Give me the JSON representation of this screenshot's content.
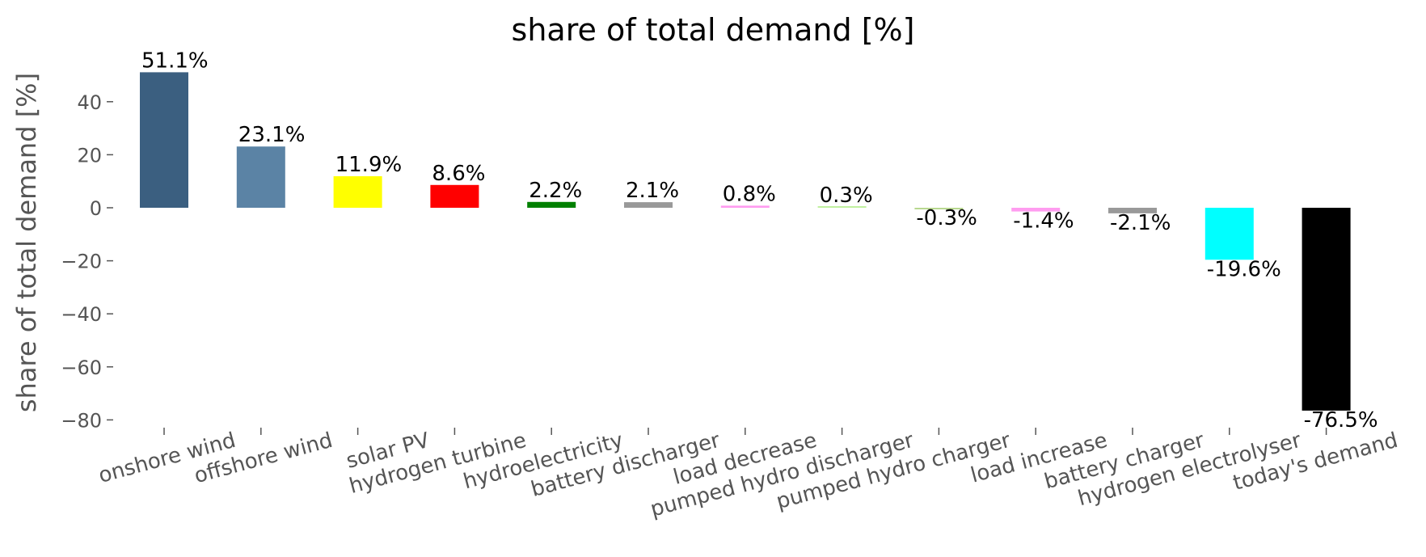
{
  "chart_data": {
    "type": "bar",
    "title": "share of total demand [%]",
    "xlabel": "",
    "ylabel": "share of total demand [%]",
    "ylim": [
      -83,
      58
    ],
    "yticks": [
      -80,
      -60,
      -40,
      -20,
      0,
      20,
      40
    ],
    "ytick_labels": [
      "−80",
      "−60",
      "−40",
      "−20",
      "0",
      "20",
      "40"
    ],
    "grid": false,
    "categories": [
      "onshore wind",
      "offshore wind",
      "solar PV",
      "hydrogen turbine",
      "hydroelectricity",
      "battery discharger",
      "load decrease",
      "pumped hydro discharger",
      "pumped hydro charger",
      "load increase",
      "battery charger",
      "hydrogen electrolyser",
      "today's demand"
    ],
    "values": [
      51.1,
      23.1,
      11.9,
      8.6,
      2.2,
      2.1,
      0.8,
      0.3,
      -0.3,
      -1.4,
      -2.1,
      -19.6,
      -76.5
    ],
    "value_labels": [
      "51.1%",
      "23.1%",
      "11.9%",
      "8.6%",
      "2.2%",
      "2.1%",
      "0.8%",
      "0.3%",
      "-0.3%",
      "-1.4%",
      "-2.1%",
      "-19.6%",
      "-76.5%"
    ],
    "colors": [
      "#3b5f80",
      "#5b83a5",
      "#ffff00",
      "#ff0000",
      "#008000",
      "#999999",
      "#ff9cf0",
      "#c0f0a0",
      "#b8d890",
      "#ff9cf0",
      "#999999",
      "#00ffff",
      "#000000"
    ]
  }
}
